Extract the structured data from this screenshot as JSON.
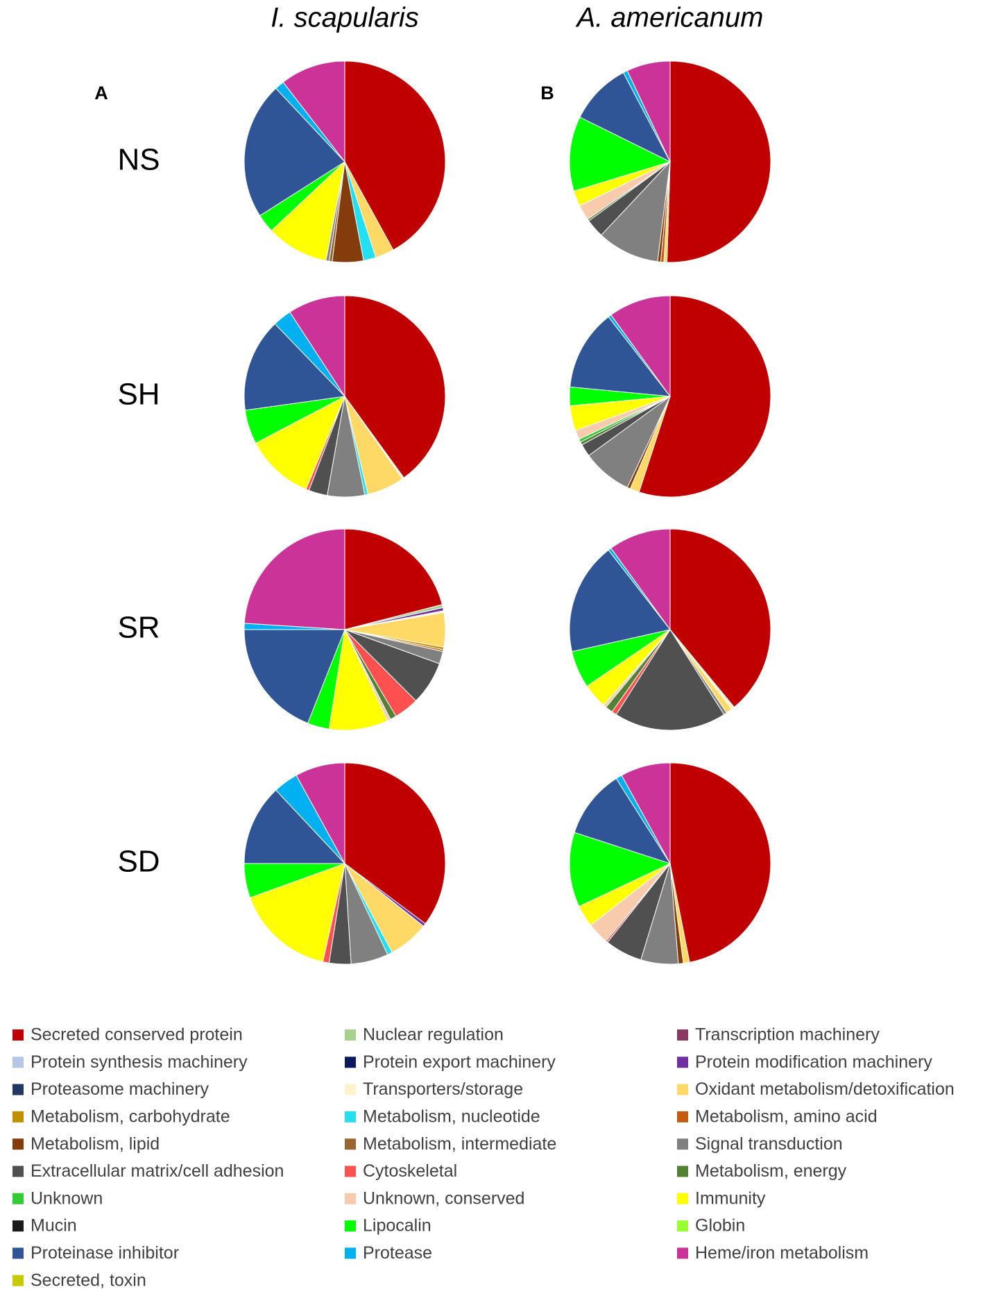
{
  "column_titles": [
    "I. scapularis",
    "A. americanum"
  ],
  "panel_labels": [
    "A",
    "B"
  ],
  "row_labels": [
    "NS",
    "SH",
    "SR",
    "SD"
  ],
  "legend": {
    "categories": [
      "Secreted conserved protein",
      "Nuclear regulation",
      "Transcription machinery",
      "Protein synthesis machinery",
      "Protein export machinery",
      "Protein modification machinery",
      "Proteasome machinery",
      "Transporters/storage",
      "Oxidant metabolism/detoxification",
      "Metabolism, carbohydrate",
      "Metabolism, nucleotide",
      "Metabolism, amino acid",
      "Metabolism, lipid",
      "Metabolism, intermediate",
      "Signal transduction",
      "Extracellular matrix/cell adhesion",
      "Cytoskeletal",
      "Metabolism, energy",
      "Unknown",
      "Unknown, conserved",
      "Immunity",
      "Mucin",
      "Lipocalin",
      "Globin",
      "Proteinase inhibitor",
      "Protease",
      "Heme/iron metabolism",
      "Secreted, toxin"
    ],
    "colors": [
      "#c00000",
      "#a9d18e",
      "#8b3a62",
      "#b4c7e7",
      "#0a1a5c",
      "#7030a0",
      "#1f3864",
      "#fff2cc",
      "#ffd966",
      "#bf9000",
      "#22e0f0",
      "#c55a11",
      "#843c0c",
      "#996633",
      "#808080",
      "#505050",
      "#ff5050",
      "#548235",
      "#33cc33",
      "#f8cbad",
      "#ffff00",
      "#1a1a1a",
      "#00ff00",
      "#99ff33",
      "#2f5597",
      "#00b0f0",
      "#cc3399",
      "#c9c900"
    ]
  },
  "chart_data": [
    {
      "type": "pie",
      "values": [
        42,
        0,
        0,
        0,
        0,
        0,
        0,
        0,
        3,
        0,
        2,
        0,
        5,
        0.5,
        0.5,
        0,
        0,
        0,
        0,
        0,
        10,
        0,
        3,
        0,
        22,
        1.5,
        10.5,
        0
      ]
    },
    {
      "type": "pie",
      "values": [
        50.5,
        0,
        0,
        0,
        0,
        0,
        0,
        0,
        0.5,
        0,
        0,
        0.5,
        0.5,
        0,
        10,
        3,
        0,
        0.3,
        0,
        2.5,
        2.5,
        0,
        12,
        0,
        10,
        0.7,
        7,
        0
      ]
    },
    {
      "type": "pie",
      "values": [
        40,
        0,
        0,
        0,
        0,
        0,
        0,
        0.3,
        6,
        0,
        0.5,
        0,
        0,
        0,
        6,
        3,
        0.5,
        0,
        0,
        0,
        11,
        0,
        5.5,
        0,
        15,
        3,
        9.2,
        0
      ]
    },
    {
      "type": "pie",
      "values": [
        55,
        0,
        0,
        0,
        0,
        0,
        0,
        0,
        1.5,
        0,
        0,
        0,
        0.5,
        0,
        8,
        2,
        0,
        0.5,
        0.5,
        1.5,
        4,
        0,
        3,
        0,
        13,
        0.5,
        10,
        0
      ]
    },
    {
      "type": "pie",
      "values": [
        21,
        0.5,
        0,
        0,
        0,
        0.5,
        0,
        0.3,
        5.5,
        0.4,
        0,
        0.3,
        0,
        0,
        2,
        7,
        4,
        1,
        0,
        0.5,
        9.5,
        0,
        3.5,
        0,
        19,
        1,
        24,
        0
      ]
    },
    {
      "type": "pie",
      "values": [
        39,
        0,
        0,
        0,
        0,
        0,
        0,
        0.5,
        1,
        0,
        0,
        0,
        0,
        0,
        0.5,
        18,
        0.8,
        1.2,
        0,
        0.5,
        4,
        0,
        6,
        0,
        18,
        0.5,
        10,
        0
      ]
    },
    {
      "type": "pie",
      "values": [
        35.2,
        0,
        0,
        0,
        0,
        0.5,
        0,
        0,
        6.5,
        0,
        0.8,
        0,
        0,
        0,
        6,
        3.5,
        1,
        0,
        0,
        0,
        16,
        0,
        5.5,
        0,
        13,
        4,
        8,
        0
      ]
    },
    {
      "type": "pie",
      "values": [
        46.9,
        0,
        0,
        0,
        0,
        0,
        0,
        0,
        1,
        0,
        0,
        0,
        0.8,
        0,
        6,
        6,
        0.3,
        0,
        0,
        3.5,
        3.5,
        0,
        12,
        0,
        11,
        1,
        8,
        0
      ]
    }
  ]
}
